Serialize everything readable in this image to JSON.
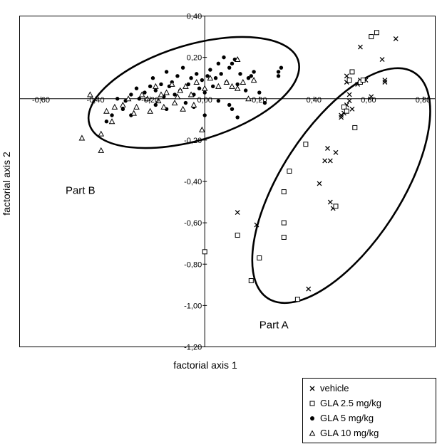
{
  "chart_data": {
    "type": "scatter",
    "xlabel": "factorial axis 1",
    "ylabel": "factorial axis 2",
    "xlim": [
      -0.6,
      0.8
    ],
    "ylim": [
      -1.2,
      0.4
    ],
    "xticks": [
      "-0,60",
      "-0,40",
      "-0,20",
      "0,00",
      "0,20",
      "0,40",
      "0,60",
      "0,80"
    ],
    "yticks": [
      "0,40",
      "0,20",
      "-0,20",
      "-0,40",
      "-0,60",
      "-0,80",
      "-1,00",
      "-1,20"
    ],
    "grid": false,
    "legend_position": "bottom-right",
    "annotations": [
      {
        "text": "Part B",
        "x": -0.51,
        "y": -0.46
      },
      {
        "text": "Part A",
        "x": 0.2,
        "y": -1.11
      }
    ],
    "regions": [
      {
        "label": "Part B",
        "cx": -0.04,
        "cy": 0.03,
        "rx": 0.4,
        "ry": 0.23,
        "rotation_deg": -17
      },
      {
        "label": "Part A",
        "cx": 0.5,
        "cy": -0.42,
        "rx": 0.22,
        "ry": 0.65,
        "rotation_deg": 33
      }
    ],
    "series": [
      {
        "name": "vehicle",
        "marker": "x",
        "points": [
          [
            0.12,
            -0.55
          ],
          [
            0.19,
            -0.61
          ],
          [
            0.38,
            -0.92
          ],
          [
            0.42,
            -0.41
          ],
          [
            0.44,
            -0.3
          ],
          [
            0.45,
            -0.24
          ],
          [
            0.46,
            -0.3
          ],
          [
            0.46,
            -0.5
          ],
          [
            0.47,
            -0.53
          ],
          [
            0.48,
            -0.26
          ],
          [
            0.5,
            -0.08
          ],
          [
            0.5,
            -0.09
          ],
          [
            0.51,
            -0.07
          ],
          [
            0.52,
            -0.06
          ],
          [
            0.52,
            -0.03
          ],
          [
            0.53,
            -0.01
          ],
          [
            0.53,
            0.02
          ],
          [
            0.54,
            -0.05
          ],
          [
            0.52,
            0.08
          ],
          [
            0.52,
            0.11
          ],
          [
            0.56,
            0.07
          ],
          [
            0.57,
            0.25
          ],
          [
            0.57,
            0.09
          ],
          [
            0.59,
            0.09
          ],
          [
            0.61,
            0.01
          ],
          [
            0.65,
            0.19
          ],
          [
            0.66,
            0.09
          ],
          [
            0.66,
            0.08
          ],
          [
            0.7,
            0.29
          ]
        ]
      },
      {
        "name": "GLA 2.5 mg/kg",
        "marker": "square",
        "points": [
          [
            0.0,
            -0.74
          ],
          [
            0.12,
            -0.66
          ],
          [
            0.17,
            -0.88
          ],
          [
            0.2,
            -0.77
          ],
          [
            0.29,
            -0.6
          ],
          [
            0.29,
            -0.67
          ],
          [
            0.29,
            -0.45
          ],
          [
            0.31,
            -0.35
          ],
          [
            0.34,
            -0.97
          ],
          [
            0.37,
            -0.22
          ],
          [
            0.48,
            -0.52
          ],
          [
            0.51,
            -0.04
          ],
          [
            0.52,
            -0.06
          ],
          [
            0.53,
            0.09
          ],
          [
            0.54,
            0.13
          ],
          [
            0.55,
            -0.14
          ],
          [
            0.57,
            0.08
          ],
          [
            0.58,
            0.09
          ],
          [
            0.61,
            0.3
          ],
          [
            0.63,
            0.32
          ]
        ]
      },
      {
        "name": "GLA 5 mg/kg",
        "marker": "dot",
        "points": [
          [
            -0.36,
            -0.11
          ],
          [
            -0.34,
            -0.08
          ],
          [
            -0.32,
            0.0
          ],
          [
            -0.29,
            -0.01
          ],
          [
            -0.27,
            0.02
          ],
          [
            -0.25,
            0.05
          ],
          [
            -0.24,
            0.0
          ],
          [
            -0.22,
            0.03
          ],
          [
            -0.2,
            0.06
          ],
          [
            -0.19,
            0.1
          ],
          [
            -0.18,
            0.04
          ],
          [
            -0.16,
            0.07
          ],
          [
            -0.15,
            0.01
          ],
          [
            -0.14,
            0.13
          ],
          [
            -0.13,
            0.06
          ],
          [
            -0.12,
            0.08
          ],
          [
            -0.11,
            0.02
          ],
          [
            -0.1,
            0.11
          ],
          [
            -0.09,
            0.04
          ],
          [
            -0.08,
            0.15
          ],
          [
            -0.07,
            -0.02
          ],
          [
            -0.06,
            0.07
          ],
          [
            -0.05,
            0.1
          ],
          [
            -0.04,
            0.02
          ],
          [
            -0.03,
            0.12
          ],
          [
            -0.02,
            0.05
          ],
          [
            -0.01,
            0.09
          ],
          [
            0.0,
            0.03
          ],
          [
            0.01,
            0.11
          ],
          [
            0.02,
            0.14
          ],
          [
            0.03,
            0.06
          ],
          [
            0.04,
            0.1
          ],
          [
            0.05,
            0.17
          ],
          [
            0.06,
            0.12
          ],
          [
            0.07,
            0.2
          ],
          [
            0.08,
            0.08
          ],
          [
            0.09,
            0.15
          ],
          [
            0.1,
            0.17
          ],
          [
            0.11,
            0.19
          ],
          [
            0.12,
            0.07
          ],
          [
            0.13,
            0.12
          ],
          [
            0.15,
            0.04
          ],
          [
            0.16,
            0.1
          ],
          [
            0.17,
            0.11
          ],
          [
            0.18,
            0.13
          ],
          [
            0.2,
            0.03
          ],
          [
            0.22,
            -0.02
          ],
          [
            0.27,
            0.13
          ],
          [
            0.27,
            0.11
          ],
          [
            0.28,
            0.15
          ],
          [
            -0.3,
            -0.05
          ],
          [
            -0.27,
            -0.08
          ],
          [
            -0.18,
            -0.03
          ],
          [
            -0.14,
            -0.05
          ],
          [
            -0.04,
            -0.04
          ],
          [
            0.0,
            -0.08
          ],
          [
            0.05,
            -0.01
          ],
          [
            0.09,
            -0.03
          ],
          [
            0.1,
            -0.05
          ],
          [
            0.12,
            -0.09
          ]
        ]
      },
      {
        "name": "GLA 10 mg/kg",
        "marker": "triangle",
        "points": [
          [
            -0.45,
            -0.19
          ],
          [
            -0.42,
            0.02
          ],
          [
            -0.38,
            -0.25
          ],
          [
            -0.38,
            -0.17
          ],
          [
            -0.36,
            -0.06
          ],
          [
            -0.34,
            -0.11
          ],
          [
            -0.33,
            -0.04
          ],
          [
            -0.3,
            -0.03
          ],
          [
            -0.28,
            0.0
          ],
          [
            -0.26,
            -0.07
          ],
          [
            -0.25,
            -0.04
          ],
          [
            -0.23,
            0.02
          ],
          [
            -0.21,
            0.0
          ],
          [
            -0.2,
            -0.06
          ],
          [
            -0.18,
            0.06
          ],
          [
            -0.17,
            -0.01
          ],
          [
            -0.16,
            0.02
          ],
          [
            -0.15,
            -0.04
          ],
          [
            -0.14,
            0.03
          ],
          [
            -0.12,
            0.07
          ],
          [
            -0.11,
            -0.02
          ],
          [
            -0.1,
            0.01
          ],
          [
            -0.09,
            0.04
          ],
          [
            -0.08,
            -0.05
          ],
          [
            -0.07,
            0.06
          ],
          [
            -0.05,
            0.02
          ],
          [
            -0.04,
            -0.03
          ],
          [
            -0.03,
            0.08
          ],
          [
            -0.01,
            -0.15
          ],
          [
            0.0,
            0.05
          ],
          [
            0.02,
            0.1
          ],
          [
            0.05,
            0.06
          ],
          [
            0.08,
            0.08
          ],
          [
            0.1,
            0.06
          ],
          [
            0.12,
            0.19
          ],
          [
            0.12,
            0.05
          ],
          [
            0.14,
            0.08
          ],
          [
            0.16,
            0.0
          ],
          [
            0.18,
            0.09
          ]
        ]
      }
    ]
  }
}
